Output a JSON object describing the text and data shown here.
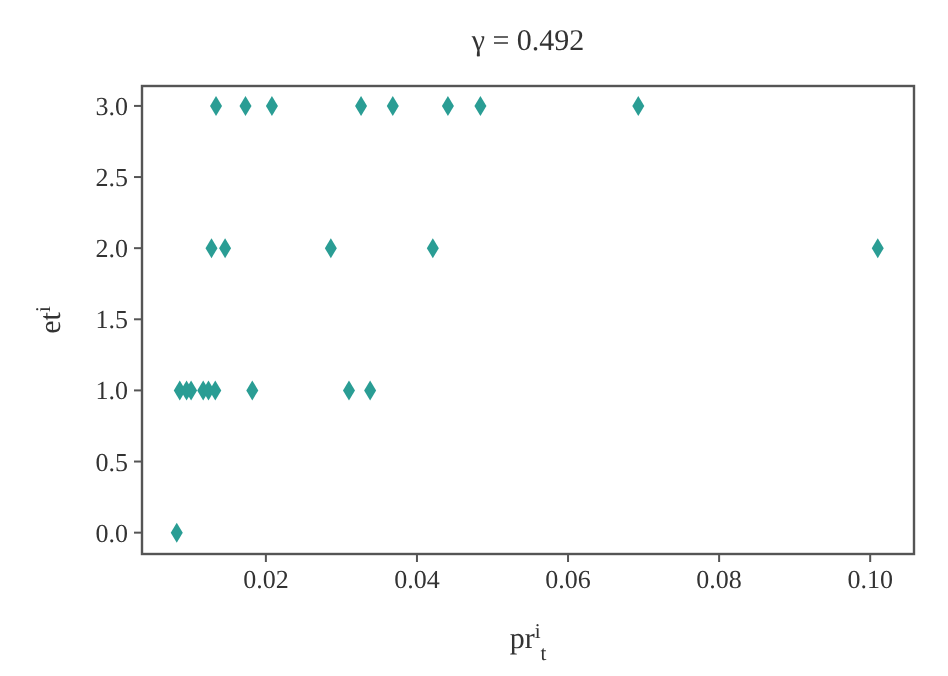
{
  "chart_data": {
    "type": "scatter",
    "title": "γ = 0.492",
    "xlabel": "pr$^{i}$$_{t}$",
    "ylabel": "et$^{i}$",
    "marker": "diamond",
    "grid": false,
    "series": [
      {
        "color": "#2a9d94",
        "x": [
          0.0134,
          0.0173,
          0.0208,
          0.0326,
          0.0368,
          0.0441,
          0.0484,
          0.0693,
          0.0128,
          0.0146,
          0.0286,
          0.0421,
          0.101,
          0.0086,
          0.0095,
          0.0101,
          0.0117,
          0.0124,
          0.0133,
          0.0182,
          0.031,
          0.0338,
          0.0082
        ],
        "values": [
          3,
          3,
          3,
          3,
          3,
          3,
          3,
          3,
          2,
          2,
          2,
          2,
          2,
          1,
          1,
          1,
          1,
          1,
          1,
          1,
          1,
          1,
          0
        ]
      }
    ],
    "xlim": [
      0.0036,
      0.1058
    ],
    "ylim": [
      -0.15,
      3.14
    ],
    "xticks": [
      0.02,
      0.04,
      0.06,
      0.08,
      {
        "value": 0.1,
        "label": "0.10"
      }
    ],
    "yticks": [
      {
        "value": 0,
        "label": "0.0"
      },
      {
        "value": 0.5,
        "label": "0.5"
      },
      {
        "value": 1,
        "label": "1.0"
      },
      {
        "value": 1.5,
        "label": "1.5"
      },
      {
        "value": 2,
        "label": "2.0"
      },
      {
        "value": 2.5,
        "label": "2.5"
      },
      {
        "value": 3,
        "label": "3.0"
      }
    ]
  }
}
